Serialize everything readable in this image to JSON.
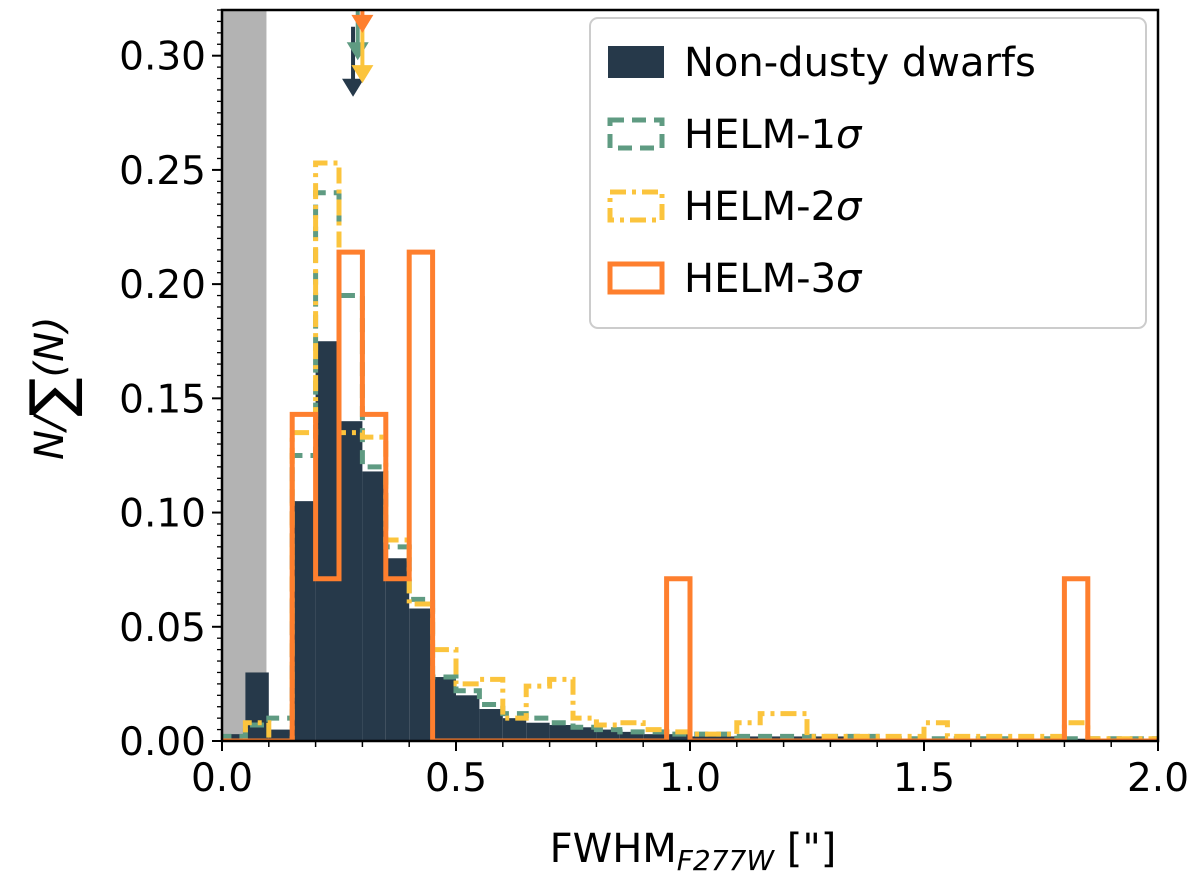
{
  "chart_data": {
    "type": "bar",
    "xlabel": "FWHM",
    "xlabel_sub": "F277W",
    "xlabel_unit": " [\"]",
    "ylabel_prefix": "N/",
    "ylabel_suffix": "(N)",
    "xlim": [
      0.0,
      2.0
    ],
    "ylim": [
      0.0,
      0.32
    ],
    "x_ticks": [
      "0.0",
      "0.5",
      "1.0",
      "1.5",
      "2.0"
    ],
    "y_ticks": [
      "0.00",
      "0.05",
      "0.10",
      "0.15",
      "0.20",
      "0.25",
      "0.30"
    ],
    "grid": false,
    "legend_position": "top-right",
    "shaded_region": {
      "x0": 0.0,
      "x1": 0.095,
      "color": "#b3b3b3"
    },
    "series": [
      {
        "name": "Non-dusty dwarfs",
        "style": "filled",
        "color": "#26394a",
        "edges": [
          0.0,
          0.05,
          0.1,
          0.15,
          0.2,
          0.25,
          0.3,
          0.35,
          0.4,
          0.45,
          0.5,
          0.55,
          0.6,
          0.65,
          0.7,
          0.75,
          0.8,
          0.85,
          0.9,
          0.95,
          1.0,
          1.1,
          1.2,
          1.3,
          1.4,
          1.5,
          1.6,
          1.8,
          2.0
        ],
        "values": [
          0.003,
          0.03,
          0.005,
          0.105,
          0.175,
          0.14,
          0.118,
          0.08,
          0.058,
          0.028,
          0.02,
          0.014,
          0.01,
          0.008,
          0.007,
          0.006,
          0.005,
          0.004,
          0.003,
          0.003,
          0.002,
          0.002,
          0.002,
          0.002,
          0.001,
          0.001,
          0.001,
          0.001
        ],
        "marker_x": 0.28,
        "marker_y": 0.282
      },
      {
        "name": "HELM-1σ",
        "style": "dashed",
        "color": "#5f9b82",
        "edges": [
          0.0,
          0.05,
          0.1,
          0.15,
          0.2,
          0.25,
          0.3,
          0.35,
          0.4,
          0.45,
          0.5,
          0.55,
          0.6,
          0.65,
          0.7,
          0.75,
          0.8,
          0.85,
          0.9,
          0.95,
          1.0,
          1.1,
          1.2,
          1.3,
          1.4,
          1.5,
          1.6,
          1.8,
          2.0
        ],
        "values": [
          0.002,
          0.007,
          0.01,
          0.125,
          0.24,
          0.195,
          0.12,
          0.085,
          0.062,
          0.028,
          0.022,
          0.016,
          0.012,
          0.01,
          0.008,
          0.006,
          0.005,
          0.004,
          0.004,
          0.003,
          0.003,
          0.002,
          0.002,
          0.002,
          0.001,
          0.001,
          0.001,
          0.001
        ],
        "marker_x": 0.29,
        "marker_y": 0.298
      },
      {
        "name": "HELM-2σ",
        "style": "dashdot",
        "color": "#fbc43d",
        "edges": [
          0.0,
          0.05,
          0.1,
          0.15,
          0.2,
          0.25,
          0.3,
          0.35,
          0.4,
          0.45,
          0.5,
          0.55,
          0.6,
          0.65,
          0.7,
          0.75,
          0.8,
          0.85,
          0.9,
          0.95,
          1.0,
          1.1,
          1.15,
          1.25,
          1.3,
          1.5,
          1.55,
          1.6,
          1.8,
          1.85,
          2.0
        ],
        "values": [
          0.0,
          0.008,
          0.0,
          0.135,
          0.253,
          0.135,
          0.133,
          0.088,
          0.06,
          0.04,
          0.025,
          0.027,
          0.01,
          0.024,
          0.027,
          0.01,
          0.007,
          0.008,
          0.005,
          0.004,
          0.003,
          0.008,
          0.012,
          0.002,
          0.002,
          0.008,
          0.002,
          0.002,
          0.008,
          0.001
        ],
        "marker_x": 0.3,
        "marker_y": 0.288
      },
      {
        "name": "HELM-3σ",
        "style": "solid",
        "color": "#fe7f2e",
        "edges": [
          0.0,
          0.15,
          0.2,
          0.25,
          0.3,
          0.35,
          0.4,
          0.45,
          0.5,
          0.95,
          1.0,
          1.8,
          1.85,
          2.0
        ],
        "values": [
          0.0,
          0.143,
          0.071,
          0.214,
          0.143,
          0.071,
          0.214,
          0.0,
          0.0,
          0.071,
          0.0,
          0.071,
          0.0
        ],
        "marker_x": 0.3,
        "marker_y": 0.31
      }
    ]
  }
}
